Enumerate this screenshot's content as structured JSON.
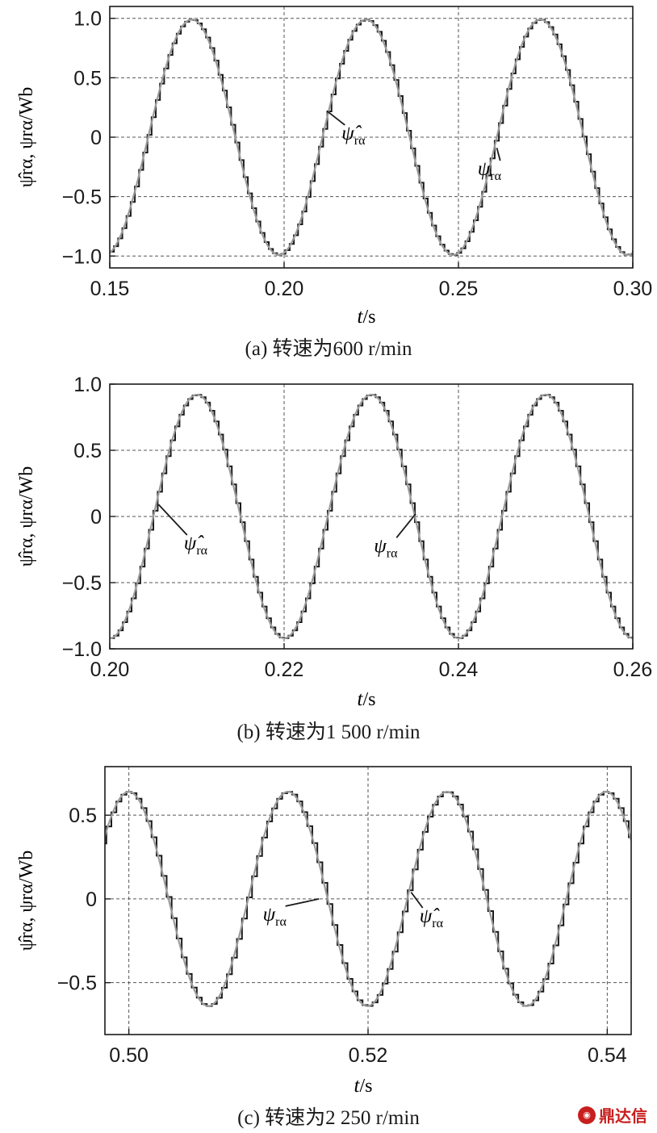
{
  "watermark": {
    "text": "鼎达信"
  },
  "chart_data": [
    {
      "id": "a",
      "type": "line",
      "caption": "(a) 转速为600 r/min",
      "xlabel_var": "t",
      "xlabel_unit": "/s",
      "ylabel": "ψ̂rα, ψrα/Wb",
      "xlim": [
        0.15,
        0.3
      ],
      "ylim": [
        -1.1,
        1.1
      ],
      "xticks": [
        0.15,
        0.2,
        0.25,
        0.3
      ],
      "xtick_labels": [
        "0.15",
        "0.20",
        "0.25",
        "0.30"
      ],
      "yticks": [
        1.0,
        0.5,
        0,
        -0.5,
        -1.0
      ],
      "ytick_labels": [
        "1.0",
        "0.5",
        "0",
        "−0.5",
        "−1.0"
      ],
      "grid": true,
      "signal": {
        "amplitude": 0.99,
        "period_s": 0.05,
        "peak_at_s": 0.1735,
        "step_s": 0.0012
      },
      "series": [
        {
          "name": "ψ̂rα",
          "kind": "step",
          "color": "#1a1a1a"
        },
        {
          "name": "ψrα",
          "kind": "smooth",
          "color": "#9a9a9a"
        }
      ],
      "annotations": [
        {
          "sym": "ψ̂",
          "sub": "rα",
          "x": 0.2165,
          "y": -0.02,
          "ax": 0.2123,
          "ay": 0.22
        },
        {
          "sym": "ψ",
          "sub": "rα",
          "x": 0.2555,
          "y": -0.32,
          "ax": 0.261,
          "ay": -0.09
        }
      ]
    },
    {
      "id": "b",
      "type": "line",
      "caption": "(b) 转速为1 500 r/min",
      "xlabel_var": "t",
      "xlabel_unit": "/s",
      "ylabel": "ψ̂rα, ψrα/Wb",
      "xlim": [
        0.2,
        0.26
      ],
      "ylim": [
        -1.0,
        1.0
      ],
      "xticks": [
        0.2,
        0.22,
        0.24,
        0.26
      ],
      "xtick_labels": [
        "0.20",
        "0.22",
        "0.24",
        "0.26"
      ],
      "yticks": [
        1.0,
        0.5,
        0,
        -0.5,
        -1.0
      ],
      "ytick_labels": [
        "1.0",
        "0.5",
        "0",
        "−0.5",
        "−1.0"
      ],
      "grid": true,
      "signal": {
        "amplitude": 0.92,
        "period_s": 0.02,
        "peak_at_s": 0.21,
        "step_s": 0.0005
      },
      "series": [
        {
          "name": "ψ̂rα",
          "kind": "step",
          "color": "#1a1a1a"
        },
        {
          "name": "ψrα",
          "kind": "smooth",
          "color": "#9a9a9a"
        }
      ],
      "annotations": [
        {
          "sym": "ψ̂",
          "sub": "rα",
          "x": 0.2085,
          "y": -0.25,
          "ax": 0.2056,
          "ay": 0.09
        },
        {
          "sym": "ψ",
          "sub": "rα",
          "x": 0.2303,
          "y": -0.27,
          "ax": 0.2351,
          "ay": 0.02
        }
      ]
    },
    {
      "id": "c",
      "type": "line",
      "caption": "(c) 转速为2 250 r/min",
      "xlabel_var": "t",
      "xlabel_unit": "/s",
      "ylabel": "ψ̂rα, ψrα/Wb",
      "xlim": [
        0.498,
        0.542
      ],
      "ylim": [
        -0.81,
        0.79
      ],
      "xticks": [
        0.5,
        0.52,
        0.54
      ],
      "xtick_labels": [
        "0.50",
        "0.52",
        "0.54"
      ],
      "yticks": [
        0.5,
        0,
        -0.5
      ],
      "ytick_labels": [
        "0.5",
        "0",
        "−0.5"
      ],
      "grid": true,
      "signal": {
        "amplitude": 0.64,
        "period_s": 0.0133,
        "peak_at_s": 0.5,
        "step_s": 0.00042
      },
      "series": [
        {
          "name": "ψ̂rα",
          "kind": "step",
          "color": "#1a1a1a"
        },
        {
          "name": "ψrα",
          "kind": "smooth",
          "color": "#9a9a9a"
        }
      ],
      "annotations": [
        {
          "sym": "ψ",
          "sub": "rα",
          "x": 0.5112,
          "y": -0.13,
          "ax": 0.5159,
          "ay": 0.0
        },
        {
          "sym": "ψ̂",
          "sub": "rα",
          "x": 0.5243,
          "y": -0.14,
          "ax": 0.5236,
          "ay": 0.04
        }
      ]
    }
  ]
}
